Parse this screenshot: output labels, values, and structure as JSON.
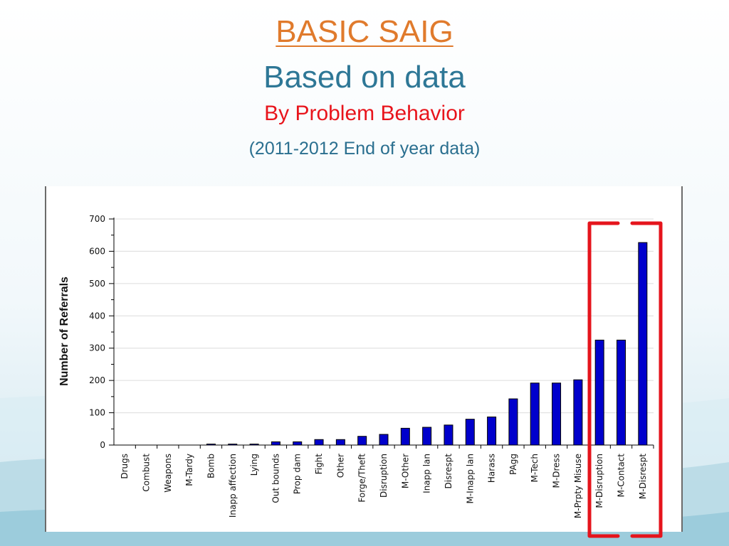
{
  "slide": {
    "title": "BASIC SAIG",
    "subtitle": "Based on data",
    "heading": "By Problem Behavior",
    "note": "(2011-2012 End of year data)"
  },
  "colors": {
    "title": "#e07a2c",
    "subtitle": "#2e7796",
    "heading": "#e8141c",
    "note": "#2a6f8f",
    "bars": "#0000cc",
    "highlight_box": "#e5141c"
  },
  "chart_data": {
    "type": "bar",
    "title": "",
    "xlabel": "",
    "ylabel": "Number of Referrals",
    "ylim": [
      0,
      700
    ],
    "yticks": [
      0,
      100,
      200,
      300,
      400,
      500,
      600,
      700
    ],
    "grid": true,
    "categories": [
      "Drugs",
      "Combust",
      "Weapons",
      "M-Tardy",
      "Bomb",
      "Inapp affection",
      "Lying",
      "Out bounds",
      "Prop dam",
      "Fight",
      "Other",
      "Forge/Theft",
      "Disruption",
      "M-Other",
      "Inapp lan",
      "Disrespt",
      "M-Inapp lan",
      "Harass",
      "PAgg",
      "M-Tech",
      "M-Dress",
      "M-Prpty Misuse",
      "M-Disruption",
      "M-Contact",
      "M-Disrespt"
    ],
    "values": [
      0,
      0,
      0,
      0,
      3,
      3,
      3,
      10,
      10,
      17,
      17,
      27,
      33,
      52,
      55,
      62,
      80,
      87,
      143,
      192,
      192,
      202,
      325,
      325,
      627
    ],
    "highlighted_categories": [
      "M-Disruption",
      "M-Contact",
      "M-Disrespt"
    ]
  }
}
